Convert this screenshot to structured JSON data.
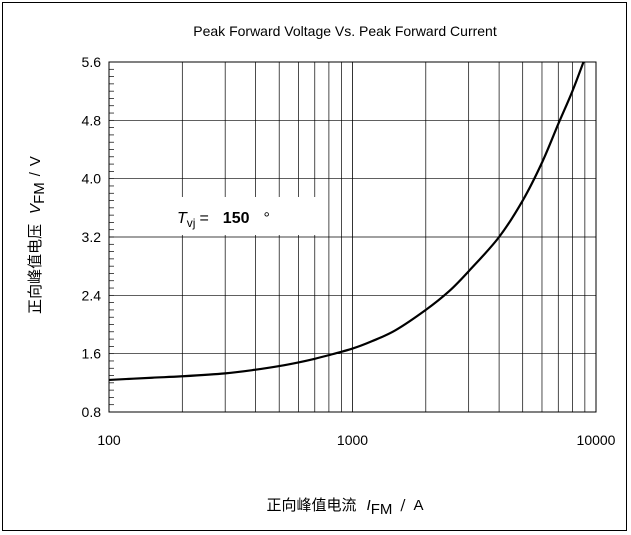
{
  "chart_data": {
    "type": "line",
    "title": "Peak Forward Voltage Vs. Peak Forward Current",
    "xlabel": {
      "cn": "正向峰值电流",
      "symbol": "I",
      "sub": "FM",
      "sep": "/",
      "unit": "A"
    },
    "ylabel": {
      "cn": "正向峰值电压",
      "symbol": "V",
      "sub": "FM",
      "sep": "/",
      "unit": "V"
    },
    "x_scale": "log",
    "xlim": [
      100,
      10000
    ],
    "ylim": [
      0.8,
      5.6
    ],
    "x_ticks": [
      100,
      1000,
      10000
    ],
    "x_tick_labels": [
      "100",
      "1000",
      "10000"
    ],
    "y_ticks": [
      0.8,
      1.6,
      2.4,
      3.2,
      4.0,
      4.8,
      5.6
    ],
    "y_tick_labels": [
      "0.8",
      "1.6",
      "2.4",
      "3.2",
      "4.0",
      "4.8",
      "5.6"
    ],
    "grid": true,
    "annotation": {
      "symbol": "T",
      "sub": "vj",
      "eq": "=",
      "value": "150",
      "unit": "°"
    },
    "series": [
      {
        "x": [
          100,
          150,
          200,
          300,
          400,
          500,
          600,
          700,
          800,
          1000,
          1200,
          1500,
          2000,
          2500,
          3000,
          4000,
          5000,
          6000,
          7000,
          8000,
          9000
        ],
        "y": [
          1.24,
          1.27,
          1.29,
          1.33,
          1.38,
          1.43,
          1.48,
          1.53,
          1.58,
          1.67,
          1.77,
          1.92,
          2.2,
          2.46,
          2.73,
          3.2,
          3.7,
          4.22,
          4.75,
          5.2,
          5.65
        ]
      }
    ]
  }
}
